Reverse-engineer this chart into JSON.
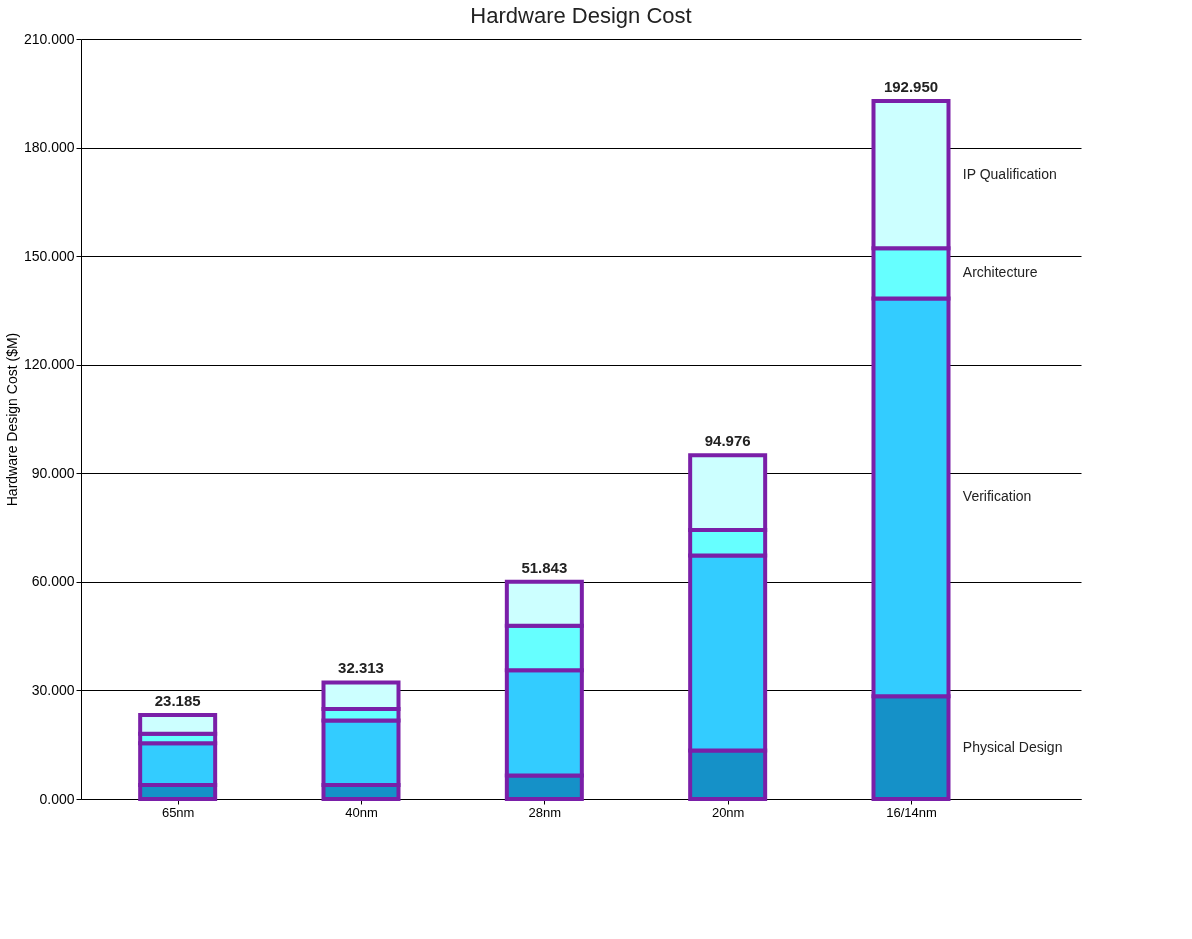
{
  "chart_data": {
    "type": "bar",
    "title": "Hardware Design Cost",
    "ylabel": "Hardware Design Cost ($M)",
    "categories": [
      "65nm",
      "40nm",
      "28nm",
      "20nm",
      "16/14nm"
    ],
    "stacked": true,
    "series": [
      {
        "name": "Physical Design",
        "color": "#1591c8",
        "values": [
          3.9,
          3.9,
          6.5,
          13.4,
          28.4
        ]
      },
      {
        "name": "Verification",
        "color": "#33ccff",
        "values": [
          11.5,
          17.8,
          29.1,
          53.9,
          109.9
        ]
      },
      {
        "name": "Architecture",
        "color": "#66ffff",
        "values": [
          2.6,
          3.2,
          12.3,
          7.0,
          13.9
        ]
      },
      {
        "name": "IP Qualification",
        "color": "#ccffff",
        "values": [
          5.2,
          7.3,
          12.1,
          20.7,
          40.7
        ]
      }
    ],
    "annotations": [
      {
        "text": "23.185",
        "x": "65nm",
        "y": 23.2
      },
      {
        "text": "32.313",
        "x": "40nm",
        "y": 32.2
      },
      {
        "text": "51.843",
        "x": "28nm",
        "y": 60.0
      },
      {
        "text": "94.976",
        "x": "20nm",
        "y": 95.0
      },
      {
        "text": "192.950",
        "x": "16/14nm",
        "y": 192.9
      }
    ],
    "ylim": [
      0,
      210
    ],
    "yticks": [
      {
        "value": 0,
        "label": "0.000"
      },
      {
        "value": 30,
        "label": "30.000"
      },
      {
        "value": 60,
        "label": "60.000"
      },
      {
        "value": 90,
        "label": "90.000"
      },
      {
        "value": 120,
        "label": "120.000"
      },
      {
        "value": 150,
        "label": "150.000"
      },
      {
        "value": 180,
        "label": "180.000"
      },
      {
        "value": 210,
        "label": "210.000"
      }
    ],
    "grid": "y"
  }
}
